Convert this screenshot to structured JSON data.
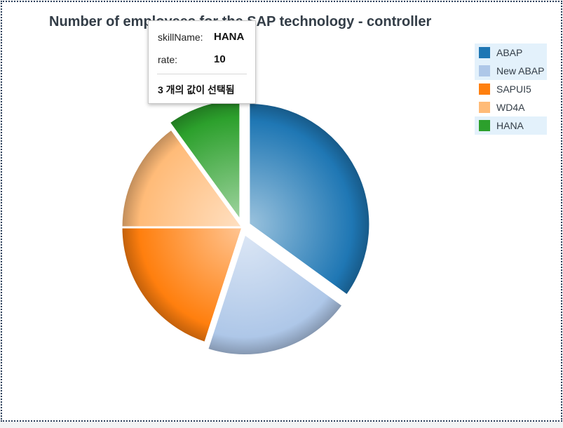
{
  "chart_data": {
    "type": "pie",
    "title": "Number of employees for the SAP technology - controller",
    "categories": [
      "ABAP",
      "New ABAP",
      "SAPUI5",
      "WD4A",
      "HANA"
    ],
    "values": [
      35,
      20,
      20,
      15,
      10
    ],
    "colors": [
      "#1f77b4",
      "#aec7e8",
      "#ff7f0e",
      "#ffbb78",
      "#2ca02c"
    ],
    "selected": [
      "ABAP",
      "New ABAP",
      "HANA"
    ],
    "legend_position": "top-right"
  },
  "tooltip": {
    "name_label": "skillName:",
    "name_value": "HANA",
    "rate_label": "rate:",
    "rate_value": "10",
    "footer": "3 개의 값이 선택됨"
  }
}
